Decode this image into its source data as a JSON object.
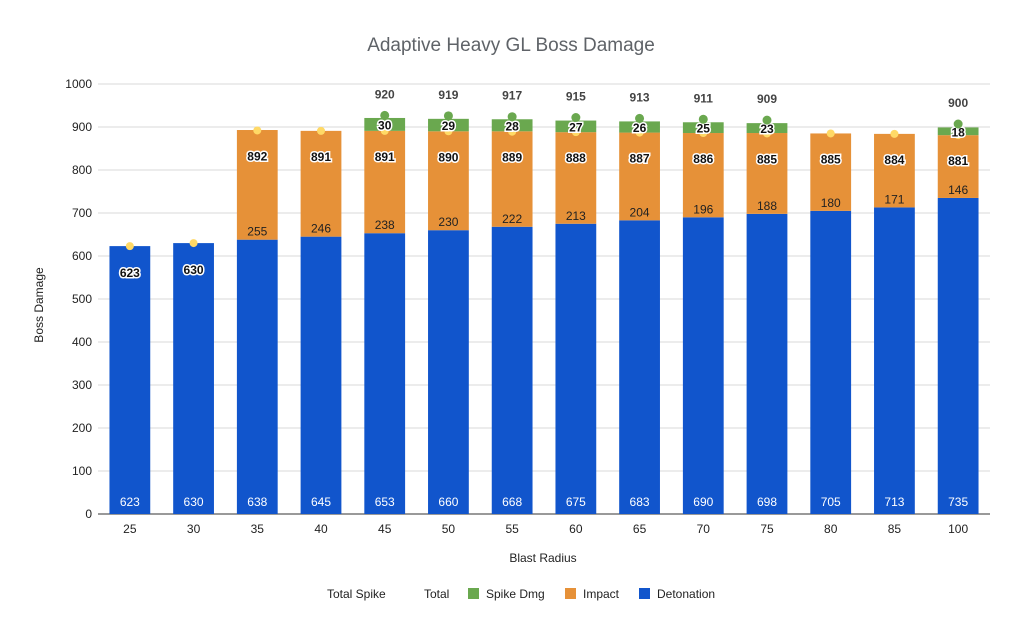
{
  "chart_data": {
    "type": "bar",
    "stacked": true,
    "title": "Adaptive Heavy GL Boss Damage",
    "xlabel": "Blast Radius",
    "ylabel": "Boss Damage",
    "ylim": [
      0,
      1000
    ],
    "yticks": [
      0,
      100,
      200,
      300,
      400,
      500,
      600,
      700,
      800,
      900,
      1000
    ],
    "grid": true,
    "legend_position": "bottom",
    "categories": [
      "25",
      "30",
      "35",
      "40",
      "45",
      "50",
      "55",
      "60",
      "65",
      "70",
      "75",
      "80",
      "85",
      "100"
    ],
    "series": [
      {
        "name": "Detonation",
        "color": "#1155cc",
        "values": [
          623,
          630,
          638,
          645,
          653,
          660,
          668,
          675,
          683,
          690,
          698,
          705,
          713,
          735
        ]
      },
      {
        "name": "Impact",
        "color": "#e69138",
        "values": [
          0,
          0,
          255,
          246,
          238,
          230,
          222,
          213,
          204,
          196,
          188,
          180,
          171,
          146
        ]
      },
      {
        "name": "Spike Dmg",
        "color": "#6aa84f",
        "values": [
          0,
          0,
          0,
          0,
          30,
          29,
          28,
          27,
          26,
          25,
          23,
          0,
          0,
          18
        ]
      }
    ],
    "line_series": [
      {
        "name": "Total",
        "color": "#ffd966",
        "values": [
          623,
          630,
          892,
          891,
          891,
          890,
          889,
          888,
          887,
          886,
          885,
          885,
          884,
          881
        ]
      },
      {
        "name": "Total Spike",
        "color": "#6aa84f",
        "values": [
          null,
          null,
          null,
          null,
          920,
          919,
          917,
          915,
          913,
          911,
          909,
          null,
          null,
          900
        ]
      }
    ],
    "legend": [
      "Total Spike",
      "Total",
      "Spike Dmg",
      "Impact",
      "Detonation"
    ]
  }
}
